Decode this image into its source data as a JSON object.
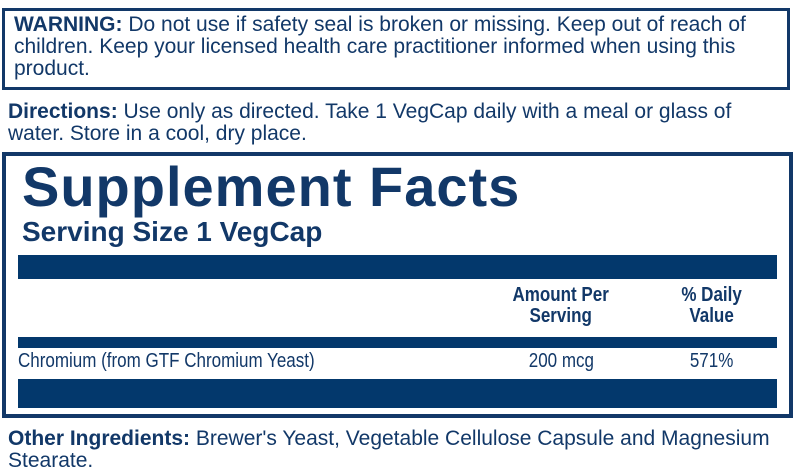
{
  "colors": {
    "navy": "#123868",
    "bar": "#03386C",
    "background": "#FFFFFF"
  },
  "warning": {
    "label": "WARNING:",
    "text": "Do not use if safety seal is broken or missing. Keep out of reach of children. Keep your licensed health care practitioner informed when using this product."
  },
  "directions": {
    "label": "Directions:",
    "text": "Use only as directed. Take 1 VegCap daily with a meal or glass of water. Store in a cool, dry place."
  },
  "supplement_facts": {
    "title": "Supplement Facts",
    "serving_size": "Serving Size 1 VegCap",
    "columns": {
      "amount": "Amount Per\nServing",
      "daily_value": "% Daily\nValue"
    },
    "rows": [
      {
        "nutrient": "Chromium (from GTF Chromium Yeast)",
        "amount": "200 mcg",
        "daily_value": "571%"
      }
    ]
  },
  "other_ingredients": {
    "label": "Other Ingredients:",
    "text": "Brewer's Yeast, Vegetable Cellulose Capsule and Magnesium Stearate."
  }
}
